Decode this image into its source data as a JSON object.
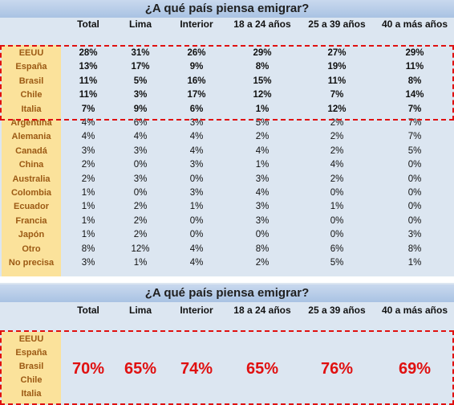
{
  "top": {
    "title": "¿A qué país piensa emigrar?",
    "columns": [
      "Total",
      "Lima",
      "Interior",
      "18 a 24 años",
      "25 a 39 años",
      "40 a más años"
    ],
    "rows": [
      {
        "country": "EEUU",
        "values": [
          "28%",
          "31%",
          "26%",
          "29%",
          "27%",
          "29%"
        ]
      },
      {
        "country": "España",
        "values": [
          "13%",
          "17%",
          "9%",
          "8%",
          "19%",
          "11%"
        ]
      },
      {
        "country": "Brasil",
        "values": [
          "11%",
          "5%",
          "16%",
          "15%",
          "11%",
          "8%"
        ]
      },
      {
        "country": "Chile",
        "values": [
          "11%",
          "3%",
          "17%",
          "12%",
          "7%",
          "14%"
        ]
      },
      {
        "country": "Italia",
        "values": [
          "7%",
          "9%",
          "6%",
          "1%",
          "12%",
          "7%"
        ]
      },
      {
        "country": "Argentina",
        "values": [
          "4%",
          "6%",
          "3%",
          "5%",
          "2%",
          "7%"
        ]
      },
      {
        "country": "Alemania",
        "values": [
          "4%",
          "4%",
          "4%",
          "2%",
          "2%",
          "7%"
        ]
      },
      {
        "country": "Canadá",
        "values": [
          "3%",
          "3%",
          "4%",
          "4%",
          "2%",
          "5%"
        ]
      },
      {
        "country": "China",
        "values": [
          "2%",
          "0%",
          "3%",
          "1%",
          "4%",
          "0%"
        ]
      },
      {
        "country": "Australia",
        "values": [
          "2%",
          "3%",
          "0%",
          "3%",
          "2%",
          "0%"
        ]
      },
      {
        "country": "Colombia",
        "values": [
          "1%",
          "0%",
          "3%",
          "4%",
          "0%",
          "0%"
        ]
      },
      {
        "country": "Ecuador",
        "values": [
          "1%",
          "2%",
          "1%",
          "3%",
          "1%",
          "0%"
        ]
      },
      {
        "country": "Francia",
        "values": [
          "1%",
          "2%",
          "0%",
          "3%",
          "0%",
          "0%"
        ]
      },
      {
        "country": "Japón",
        "values": [
          "1%",
          "2%",
          "0%",
          "0%",
          "0%",
          "3%"
        ]
      },
      {
        "country": "Otro",
        "values": [
          "8%",
          "12%",
          "4%",
          "8%",
          "6%",
          "8%"
        ]
      },
      {
        "country": "No precisa",
        "values": [
          "3%",
          "1%",
          "4%",
          "2%",
          "5%",
          "1%"
        ]
      }
    ]
  },
  "bottom": {
    "title": "¿A qué país piensa emigrar?",
    "columns": [
      "Total",
      "Lima",
      "Interior",
      "18 a 24 años",
      "25 a 39 años",
      "40 a más años"
    ],
    "countries": [
      "EEUU",
      "España",
      "Brasil",
      "Chile",
      "Italia"
    ],
    "totals": [
      "70%",
      "65%",
      "74%",
      "65%",
      "76%",
      "69%"
    ]
  },
  "colors": {
    "highlight": "#e01010",
    "country_bg": "#fbe29b",
    "panel_bg": "#dce6f1"
  }
}
